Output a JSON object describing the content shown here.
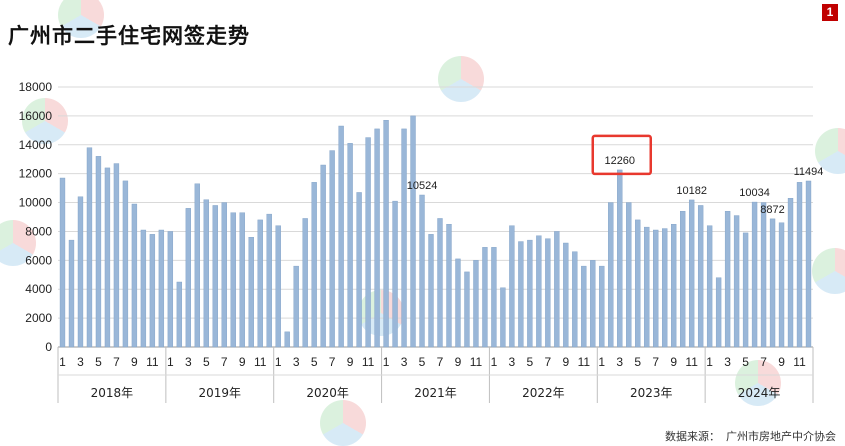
{
  "title": "广州市二手住宅网签走势",
  "page_number": "1",
  "source_label": "数据来源：",
  "source_value": "广州市房地产中介协会",
  "colors": {
    "bar": "#9ab7d8",
    "bar_edge": "#7d9ec4",
    "highlight_box": "#e8382e",
    "badge": "#c00000"
  },
  "chart_data": {
    "type": "bar",
    "title": "广州市二手住宅网签走势",
    "xlabel": "",
    "ylabel": "",
    "ylim": [
      0,
      18000
    ],
    "yticks": [
      0,
      2000,
      4000,
      6000,
      8000,
      10000,
      12000,
      14000,
      16000,
      18000
    ],
    "grid": true,
    "legend": "none",
    "year_groups": [
      {
        "label": "2018年",
        "months": 12
      },
      {
        "label": "2019年",
        "months": 12
      },
      {
        "label": "2020年",
        "months": 12
      },
      {
        "label": "2021年",
        "months": 12
      },
      {
        "label": "2022年",
        "months": 12
      },
      {
        "label": "2023年",
        "months": 12
      },
      {
        "label": "2024年",
        "months": 12
      }
    ],
    "month_tick_labels": [
      "1",
      "",
      "3",
      "",
      "5",
      "",
      "7",
      "",
      "9",
      "",
      "11",
      ""
    ],
    "values": [
      11700,
      7400,
      10400,
      13800,
      13200,
      12400,
      12700,
      11500,
      9900,
      8100,
      7800,
      8100,
      8000,
      4500,
      9600,
      11300,
      10200,
      9800,
      10000,
      9300,
      9300,
      7600,
      8800,
      9200,
      8400,
      1050,
      5600,
      8900,
      11400,
      12600,
      13600,
      15300,
      14100,
      10700,
      14500,
      15100,
      15700,
      10100,
      15100,
      16000,
      10524,
      7800,
      8900,
      8500,
      6100,
      5200,
      6000,
      6900,
      6900,
      4100,
      8400,
      7300,
      7400,
      7700,
      7500,
      8000,
      7200,
      6600,
      5600,
      6000,
      5600,
      10000,
      12260,
      10000,
      8800,
      8300,
      8100,
      8200,
      8500,
      9400,
      10182,
      9800,
      8400,
      4800,
      9400,
      9100,
      7900,
      10034,
      10000,
      8872,
      8600,
      10300,
      11400,
      11494
    ],
    "data_labels": [
      {
        "index": 40,
        "text": "10524"
      },
      {
        "index": 62,
        "text": "12260"
      },
      {
        "index": 70,
        "text": "10182"
      },
      {
        "index": 77,
        "text": "10034"
      },
      {
        "index": 79,
        "text": "8872"
      },
      {
        "index": 83,
        "text": "11494"
      }
    ],
    "highlight_index": 62
  }
}
